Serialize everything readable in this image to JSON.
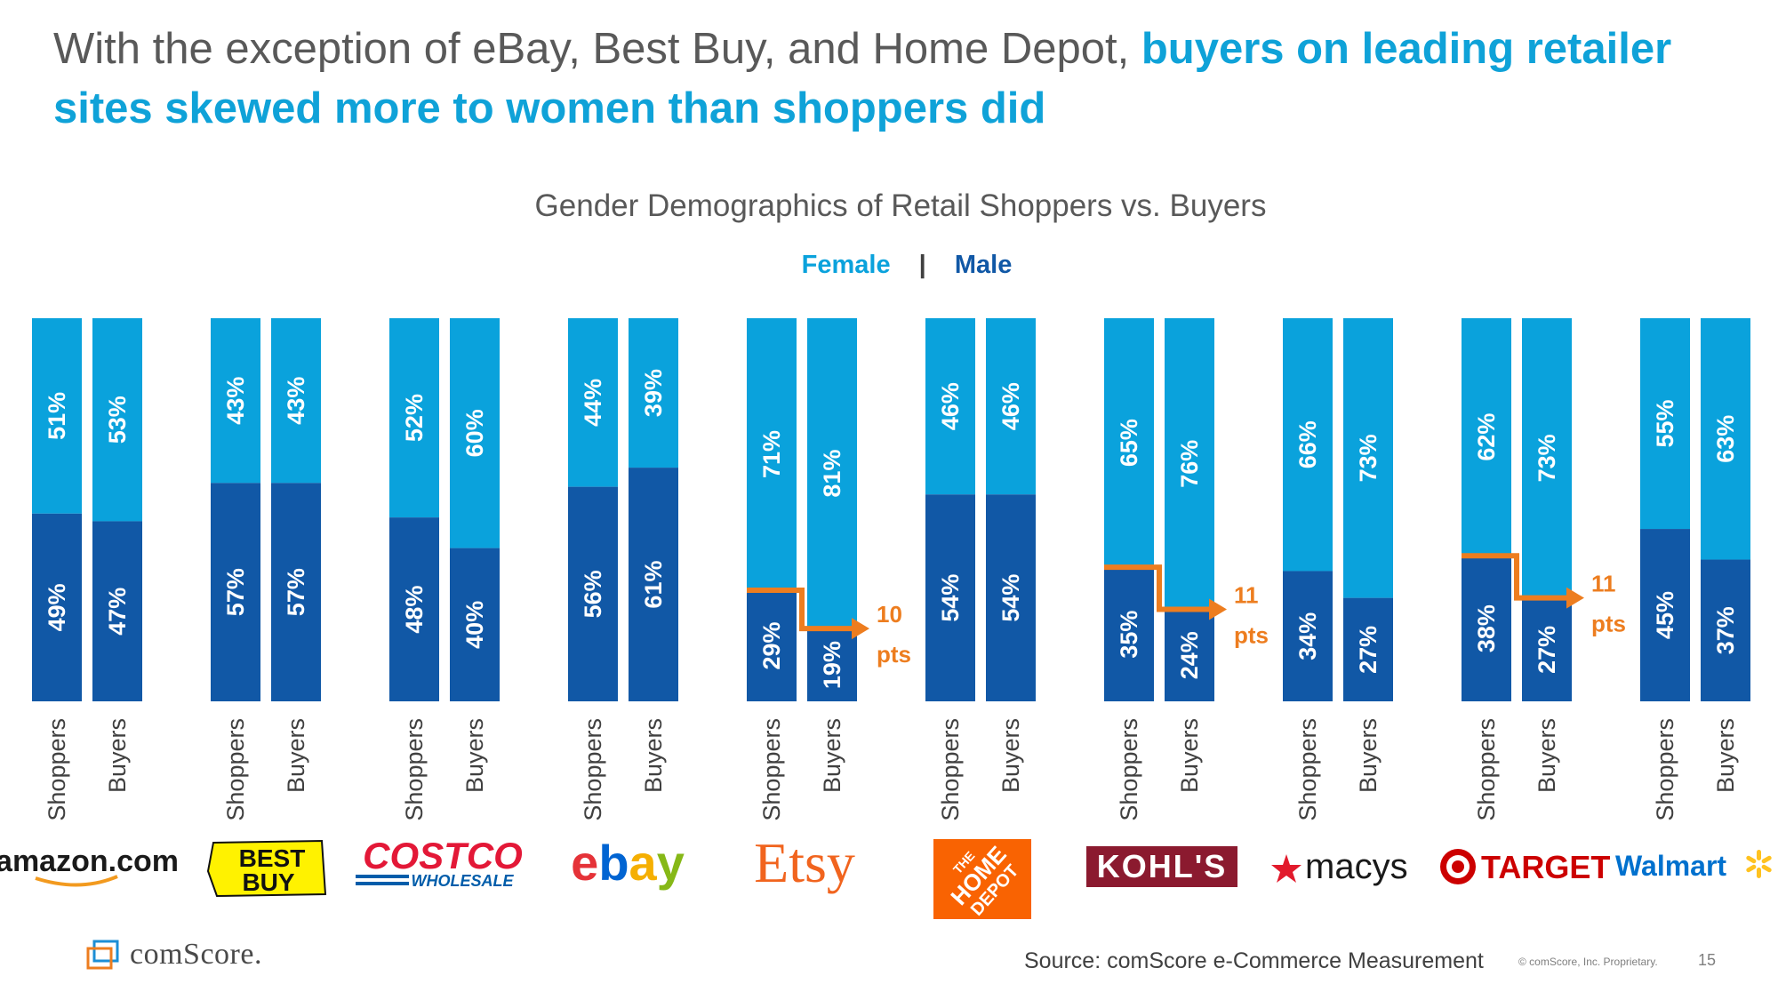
{
  "headline": {
    "lead": "With the exception of eBay, Best Buy, and Home Depot, ",
    "accent": "buyers on leading retailer sites skewed more to women than shoppers did"
  },
  "colors": {
    "female": "#0aa2dc",
    "male": "#1158a6",
    "arrow": "#ed7d1f",
    "title": "#595959"
  },
  "chart_data": {
    "type": "bar",
    "stacked": true,
    "percent": true,
    "title": "Gender Demographics of Retail Shoppers vs. Buyers",
    "legend": {
      "female": "Female",
      "separator": "|",
      "male": "Male",
      "placement": "top-center"
    },
    "bar_labels": [
      "Shoppers",
      "Buyers"
    ],
    "ylim": [
      0,
      100
    ],
    "retailers": [
      {
        "name": "amazon.com",
        "logo": "amazon.com",
        "female": [
          51,
          53
        ],
        "male": [
          49,
          47
        ]
      },
      {
        "name": "Best Buy",
        "logo": "BEST BUY",
        "female": [
          43,
          43
        ],
        "male": [
          57,
          57
        ]
      },
      {
        "name": "Costco",
        "logo": "COSTCO",
        "logo_sub": "WHOLESALE",
        "female": [
          52,
          60
        ],
        "male": [
          48,
          40
        ]
      },
      {
        "name": "eBay",
        "logo": "ebay",
        "female": [
          44,
          39
        ],
        "male": [
          56,
          61
        ]
      },
      {
        "name": "Etsy",
        "logo": "Etsy",
        "female": [
          71,
          81
        ],
        "male": [
          29,
          19
        ],
        "callout": {
          "value": "10",
          "unit": "pts"
        }
      },
      {
        "name": "Home Depot",
        "logo": "THE HOME DEPOT",
        "female": [
          46,
          46
        ],
        "male": [
          54,
          54
        ]
      },
      {
        "name": "Kohl's",
        "logo": "KOHL'S",
        "female": [
          65,
          76
        ],
        "male": [
          35,
          24
        ],
        "callout": {
          "value": "11",
          "unit": "pts"
        }
      },
      {
        "name": "Macy's",
        "logo": "macys",
        "female": [
          66,
          73
        ],
        "male": [
          34,
          27
        ]
      },
      {
        "name": "Target",
        "logo": "TARGET",
        "female": [
          62,
          73
        ],
        "male": [
          38,
          27
        ],
        "callout": {
          "value": "11",
          "unit": "pts"
        }
      },
      {
        "name": "Walmart",
        "logo": "Walmart",
        "female": [
          55,
          63
        ],
        "male": [
          45,
          37
        ]
      }
    ]
  },
  "footer": {
    "brand": "comScore.",
    "source": "Source: comScore e-Commerce Measurement",
    "copyright": "© comScore, Inc. Proprietary.",
    "page_number": "15"
  }
}
